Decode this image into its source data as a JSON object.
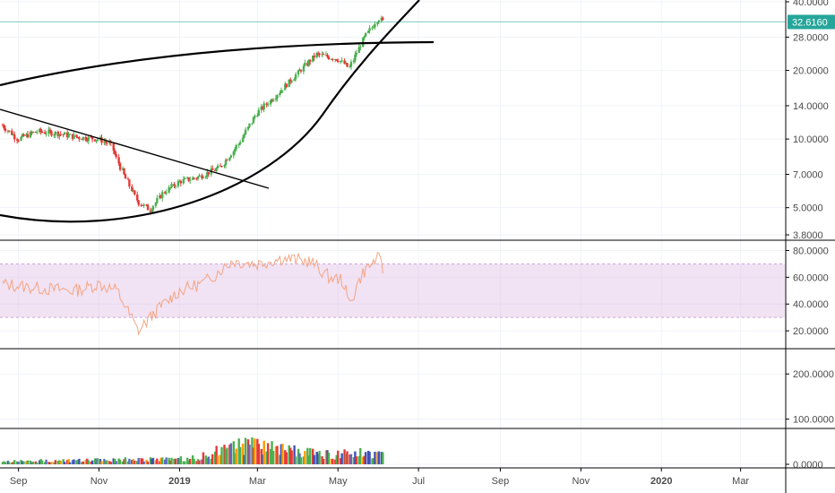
{
  "price_axis": {
    "labels": [
      "40.0000",
      "28.0000",
      "20.0000",
      "14.0000",
      "10.0000",
      "7.0000",
      "5.0000",
      "3.8000"
    ],
    "current_price": "32.6160",
    "current_price_color": "#26a69a"
  },
  "rsi_axis": {
    "labels": [
      "80.0000",
      "60.0000",
      "40.0000",
      "20.0000"
    ],
    "band": [
      30,
      70
    ],
    "band_color": "#e1bee7",
    "line_color": "#f4a582"
  },
  "volume_axis": {
    "labels": [
      "200.0000",
      "100.0000",
      "0.0000"
    ]
  },
  "time_axis": {
    "labels": [
      "Sep",
      "Nov",
      "2019",
      "Mar",
      "May",
      "Jul",
      "Sep",
      "Nov",
      "2020",
      "Mar"
    ]
  },
  "colors": {
    "up": "#4caf50",
    "down": "#e53935",
    "grid": "#f0f3fa",
    "pane_border": "#000000",
    "trendline": "#000000"
  },
  "chart_data": [
    {
      "type": "candlestick",
      "scale": "log",
      "ylim": [
        3.8,
        40
      ],
      "x": [
        "2018-08-20",
        "2018-09-01",
        "2018-09-15",
        "2018-10-01",
        "2018-10-15",
        "2018-11-01",
        "2018-11-10",
        "2018-11-20",
        "2018-12-01",
        "2018-12-10",
        "2018-12-20",
        "2019-01-01",
        "2019-01-15",
        "2019-02-01",
        "2019-02-15",
        "2019-03-01",
        "2019-03-15",
        "2019-04-01",
        "2019-04-15",
        "2019-05-01",
        "2019-05-10",
        "2019-05-20",
        "2019-06-01",
        "2019-06-05"
      ],
      "close": [
        11.5,
        10.0,
        10.8,
        10.6,
        10.2,
        10.0,
        9.5,
        7.0,
        5.3,
        4.9,
        5.8,
        6.5,
        6.8,
        7.5,
        9.5,
        13.0,
        15.5,
        19.5,
        23.5,
        22.5,
        20.5,
        27.0,
        34.0,
        32.6
      ]
    },
    {
      "type": "line",
      "name": "RSI",
      "ylim": [
        10,
        85
      ],
      "x": [
        "2018-08-20",
        "2018-09-15",
        "2018-10-15",
        "2018-11-01",
        "2018-11-15",
        "2018-12-01",
        "2018-12-15",
        "2019-01-01",
        "2019-01-20",
        "2019-02-10",
        "2019-03-01",
        "2019-03-20",
        "2019-04-10",
        "2019-04-25",
        "2019-05-05",
        "2019-05-10",
        "2019-05-20",
        "2019-06-01",
        "2019-06-05"
      ],
      "values": [
        55,
        52,
        50,
        55,
        50,
        20,
        35,
        50,
        56,
        72,
        70,
        74,
        72,
        60,
        58,
        40,
        63,
        75,
        62
      ]
    },
    {
      "type": "bar",
      "name": "Volume",
      "ylim": [
        0,
        250
      ],
      "x": [
        "2018-08-20",
        "2018-09-15",
        "2018-10-15",
        "2018-11-15",
        "2018-12-10",
        "2018-12-20",
        "2019-01-15",
        "2019-02-01",
        "2019-02-15",
        "2019-03-01",
        "2019-03-15",
        "2019-04-01",
        "2019-04-15",
        "2019-05-01",
        "2019-05-15",
        "2019-06-05"
      ],
      "values": [
        6,
        8,
        8,
        10,
        12,
        10,
        14,
        30,
        42,
        40,
        36,
        30,
        22,
        20,
        28,
        24
      ]
    }
  ]
}
